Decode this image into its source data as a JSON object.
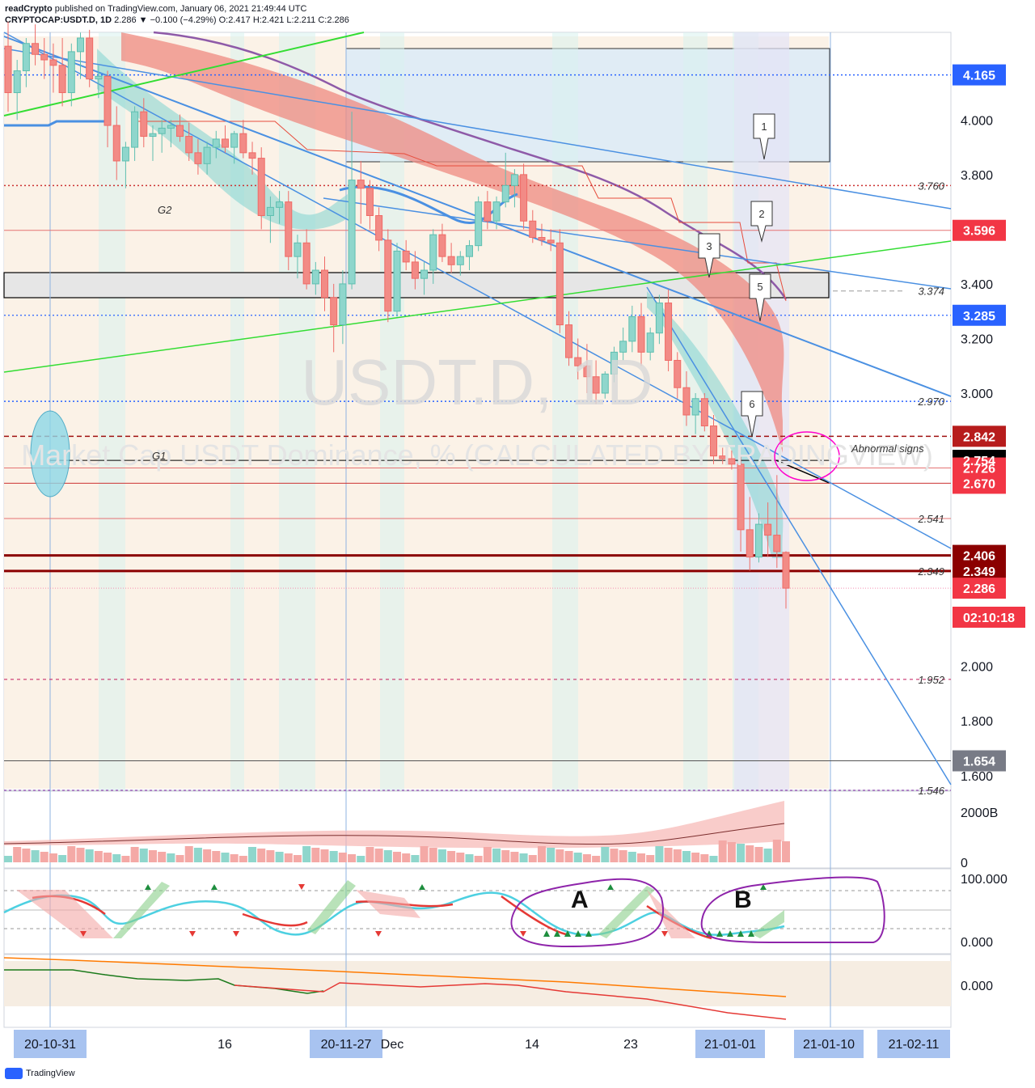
{
  "header": {
    "publisher": "readCrypto",
    "published_text": "published on TradingView.com, January 06, 2021 21:49:44 UTC",
    "symbol": "CRYPTOCAP:USDT.D, 1D",
    "ohlc": "2.286 ▼ −0.100 (−4.29%) O:2.417 H:2.421 L:2.211 C:2.286"
  },
  "watermark": {
    "symbol": "USDT.D, 1D",
    "description": "Market Cap USDT Dominance, % (CALCULATED BY TRADINGVIEW)"
  },
  "footer": {
    "brand": "TradingView"
  },
  "colors": {
    "up": "#26a69a",
    "down": "#ef5350",
    "trend": "#4a90e2",
    "green_line": "#33dd33",
    "ma_purple": "#8e5aa8",
    "dark_red": "#8b0000",
    "accent_blue": "#2962ff"
  },
  "chart_data": {
    "type": "candlestick",
    "symbol": "CRYPTOCAP:USDT.D",
    "interval": "1D",
    "ylim": [
      1.546,
      4.3
    ],
    "x_tick_labels": [
      "20-10-31",
      "16",
      "20-11-27",
      "Dec",
      "14",
      "23",
      "21-01-01",
      "21-01-10",
      "21-02-11"
    ],
    "y_tick_labels": [
      "4.000",
      "3.800",
      "3.400",
      "3.200",
      "3.000",
      "2.000",
      "1.800",
      "1.600"
    ],
    "price_badges": [
      {
        "value": "4.165",
        "color": "#2962ff"
      },
      {
        "value": "3.596",
        "color": "#f23645"
      },
      {
        "value": "3.285",
        "color": "#2962ff"
      },
      {
        "value": "2.842",
        "color": "#b71c1c"
      },
      {
        "value": "2.754",
        "color": "#000000"
      },
      {
        "value": "2.726",
        "color": "#f23645"
      },
      {
        "value": "2.670",
        "color": "#f23645"
      },
      {
        "value": "2.406",
        "color": "#8b0000"
      },
      {
        "value": "2.349",
        "color": "#8b0000"
      },
      {
        "value": "2.286",
        "color": "#f23645"
      },
      {
        "value": "02:10:18",
        "color": "#f23645"
      },
      {
        "value": "1.654",
        "color": "#787b86"
      }
    ],
    "level_labels": [
      "3.760",
      "3.374",
      "2.970",
      "2.541",
      "2.349",
      "1.952",
      "1.546"
    ],
    "annotations": {
      "G1": "G1",
      "G2": "G2",
      "abnormal": "Abnormal signs",
      "callouts": [
        "1",
        "2",
        "3",
        "5",
        "6"
      ]
    },
    "candles": [
      {
        "o": 4.27,
        "h": 4.36,
        "l": 4.03,
        "c": 4.1
      },
      {
        "o": 4.1,
        "h": 4.22,
        "l": 4.0,
        "c": 4.18
      },
      {
        "o": 4.18,
        "h": 4.3,
        "l": 4.12,
        "c": 4.28
      },
      {
        "o": 4.28,
        "h": 4.35,
        "l": 4.2,
        "c": 4.24
      },
      {
        "o": 4.24,
        "h": 4.3,
        "l": 4.15,
        "c": 4.22
      },
      {
        "o": 4.22,
        "h": 4.28,
        "l": 4.1,
        "c": 4.2
      },
      {
        "o": 4.2,
        "h": 4.3,
        "l": 4.05,
        "c": 4.1
      },
      {
        "o": 4.1,
        "h": 4.28,
        "l": 4.05,
        "c": 4.25
      },
      {
        "o": 4.25,
        "h": 4.32,
        "l": 4.15,
        "c": 4.3
      },
      {
        "o": 4.3,
        "h": 4.33,
        "l": 4.12,
        "c": 4.15
      },
      {
        "o": 4.15,
        "h": 4.2,
        "l": 4.08,
        "c": 4.16
      },
      {
        "o": 4.16,
        "h": 4.18,
        "l": 3.9,
        "c": 3.98
      },
      {
        "o": 3.98,
        "h": 4.05,
        "l": 3.78,
        "c": 3.85
      },
      {
        "o": 3.85,
        "h": 3.92,
        "l": 3.75,
        "c": 3.9
      },
      {
        "o": 3.9,
        "h": 4.05,
        "l": 3.85,
        "c": 4.03
      },
      {
        "o": 4.03,
        "h": 4.08,
        "l": 3.9,
        "c": 3.94
      },
      {
        "o": 3.94,
        "h": 3.98,
        "l": 3.85,
        "c": 3.95
      },
      {
        "o": 3.95,
        "h": 4.0,
        "l": 3.88,
        "c": 3.97
      },
      {
        "o": 3.97,
        "h": 4.0,
        "l": 3.9,
        "c": 3.98
      },
      {
        "o": 3.98,
        "h": 4.02,
        "l": 3.92,
        "c": 3.94
      },
      {
        "o": 3.94,
        "h": 3.99,
        "l": 3.85,
        "c": 3.88
      },
      {
        "o": 3.88,
        "h": 3.93,
        "l": 3.8,
        "c": 3.84
      },
      {
        "o": 3.84,
        "h": 3.92,
        "l": 3.8,
        "c": 3.9
      },
      {
        "o": 3.9,
        "h": 3.96,
        "l": 3.86,
        "c": 3.93
      },
      {
        "o": 3.93,
        "h": 3.98,
        "l": 3.88,
        "c": 3.9
      },
      {
        "o": 3.9,
        "h": 3.96,
        "l": 3.84,
        "c": 3.95
      },
      {
        "o": 3.95,
        "h": 4.0,
        "l": 3.86,
        "c": 3.88
      },
      {
        "o": 3.88,
        "h": 3.92,
        "l": 3.8,
        "c": 3.86
      },
      {
        "o": 3.86,
        "h": 3.9,
        "l": 3.6,
        "c": 3.65
      },
      {
        "o": 3.65,
        "h": 3.72,
        "l": 3.55,
        "c": 3.68
      },
      {
        "o": 3.68,
        "h": 3.74,
        "l": 3.62,
        "c": 3.7
      },
      {
        "o": 3.7,
        "h": 3.74,
        "l": 3.45,
        "c": 3.5
      },
      {
        "o": 3.5,
        "h": 3.58,
        "l": 3.42,
        "c": 3.55
      },
      {
        "o": 3.55,
        "h": 3.6,
        "l": 3.38,
        "c": 3.4
      },
      {
        "o": 3.4,
        "h": 3.48,
        "l": 3.36,
        "c": 3.45
      },
      {
        "o": 3.45,
        "h": 3.5,
        "l": 3.3,
        "c": 3.35
      },
      {
        "o": 3.35,
        "h": 3.4,
        "l": 3.15,
        "c": 3.25
      },
      {
        "o": 3.25,
        "h": 3.45,
        "l": 3.18,
        "c": 3.4
      },
      {
        "o": 3.4,
        "h": 4.03,
        "l": 3.38,
        "c": 3.78
      },
      {
        "o": 3.78,
        "h": 3.85,
        "l": 3.62,
        "c": 3.75
      },
      {
        "o": 3.75,
        "h": 3.78,
        "l": 3.6,
        "c": 3.65
      },
      {
        "o": 3.65,
        "h": 3.68,
        "l": 3.52,
        "c": 3.56
      },
      {
        "o": 3.56,
        "h": 3.6,
        "l": 3.26,
        "c": 3.3
      },
      {
        "o": 3.3,
        "h": 3.55,
        "l": 3.28,
        "c": 3.52
      },
      {
        "o": 3.52,
        "h": 3.56,
        "l": 3.45,
        "c": 3.48
      },
      {
        "o": 3.48,
        "h": 3.52,
        "l": 3.38,
        "c": 3.42
      },
      {
        "o": 3.42,
        "h": 3.48,
        "l": 3.36,
        "c": 3.45
      },
      {
        "o": 3.45,
        "h": 3.6,
        "l": 3.4,
        "c": 3.58
      },
      {
        "o": 3.58,
        "h": 3.62,
        "l": 3.48,
        "c": 3.5
      },
      {
        "o": 3.5,
        "h": 3.55,
        "l": 3.44,
        "c": 3.47
      },
      {
        "o": 3.47,
        "h": 3.52,
        "l": 3.43,
        "c": 3.5
      },
      {
        "o": 3.5,
        "h": 3.56,
        "l": 3.45,
        "c": 3.54
      },
      {
        "o": 3.54,
        "h": 3.72,
        "l": 3.52,
        "c": 3.7
      },
      {
        "o": 3.7,
        "h": 3.74,
        "l": 3.6,
        "c": 3.63
      },
      {
        "o": 3.63,
        "h": 3.72,
        "l": 3.6,
        "c": 3.7
      },
      {
        "o": 3.7,
        "h": 3.88,
        "l": 3.68,
        "c": 3.76
      },
      {
        "o": 3.76,
        "h": 3.82,
        "l": 3.68,
        "c": 3.8
      },
      {
        "o": 3.8,
        "h": 3.84,
        "l": 3.6,
        "c": 3.63
      },
      {
        "o": 3.63,
        "h": 3.67,
        "l": 3.55,
        "c": 3.57
      },
      {
        "o": 3.57,
        "h": 3.62,
        "l": 3.54,
        "c": 3.56
      },
      {
        "o": 3.56,
        "h": 3.6,
        "l": 3.52,
        "c": 3.55
      },
      {
        "o": 3.55,
        "h": 3.6,
        "l": 3.22,
        "c": 3.25
      },
      {
        "o": 3.25,
        "h": 3.3,
        "l": 3.1,
        "c": 3.13
      },
      {
        "o": 3.13,
        "h": 3.2,
        "l": 3.05,
        "c": 3.1
      },
      {
        "o": 3.1,
        "h": 3.18,
        "l": 3.0,
        "c": 3.06
      },
      {
        "o": 3.06,
        "h": 3.12,
        "l": 2.96,
        "c": 3.0
      },
      {
        "o": 3.0,
        "h": 3.08,
        "l": 2.98,
        "c": 3.07
      },
      {
        "o": 3.07,
        "h": 3.17,
        "l": 3.04,
        "c": 3.15
      },
      {
        "o": 3.15,
        "h": 3.24,
        "l": 3.12,
        "c": 3.19
      },
      {
        "o": 3.19,
        "h": 3.32,
        "l": 3.15,
        "c": 3.28
      },
      {
        "o": 3.28,
        "h": 3.33,
        "l": 3.1,
        "c": 3.15
      },
      {
        "o": 3.15,
        "h": 3.24,
        "l": 3.12,
        "c": 3.22
      },
      {
        "o": 3.22,
        "h": 3.36,
        "l": 3.18,
        "c": 3.33
      },
      {
        "o": 3.33,
        "h": 3.38,
        "l": 3.08,
        "c": 3.12
      },
      {
        "o": 3.12,
        "h": 3.15,
        "l": 2.98,
        "c": 3.02
      },
      {
        "o": 3.02,
        "h": 3.08,
        "l": 2.88,
        "c": 2.92
      },
      {
        "o": 2.92,
        "h": 3.0,
        "l": 2.85,
        "c": 2.98
      },
      {
        "o": 2.98,
        "h": 3.0,
        "l": 2.86,
        "c": 2.88
      },
      {
        "o": 2.88,
        "h": 2.92,
        "l": 2.74,
        "c": 2.77
      },
      {
        "o": 2.77,
        "h": 2.8,
        "l": 2.74,
        "c": 2.76
      },
      {
        "o": 2.76,
        "h": 2.79,
        "l": 2.72,
        "c": 2.74
      },
      {
        "o": 2.74,
        "h": 2.77,
        "l": 2.42,
        "c": 2.5
      },
      {
        "o": 2.5,
        "h": 2.62,
        "l": 2.35,
        "c": 2.4
      },
      {
        "o": 2.4,
        "h": 2.56,
        "l": 2.38,
        "c": 2.52
      },
      {
        "o": 2.52,
        "h": 2.6,
        "l": 2.4,
        "c": 2.48
      },
      {
        "o": 2.48,
        "h": 2.7,
        "l": 2.36,
        "c": 2.42
      },
      {
        "o": 2.417,
        "h": 2.421,
        "l": 2.211,
        "c": 2.286
      }
    ],
    "volume_axis_labels": [
      "2000B",
      "0"
    ],
    "oscillator_axis_labels": [
      "100.000",
      "0.000"
    ],
    "oscillator_annotations": [
      "A",
      "B"
    ],
    "macd_axis_labels": [
      "0.000"
    ]
  }
}
